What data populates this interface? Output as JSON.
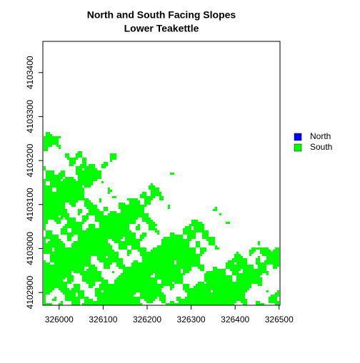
{
  "chart_data": {
    "type": "raster",
    "title": [
      "North and South Facing Slopes",
      "Lower Teakettle"
    ],
    "series": [
      {
        "name": "North",
        "color": "#0000ff"
      },
      {
        "name": "South",
        "color": "#00ff00"
      }
    ],
    "xlim": [
      325963,
      326502
    ],
    "ylim": [
      4102871,
      4103471
    ],
    "xticks": [
      326000,
      326100,
      326200,
      326300,
      326400,
      326500
    ],
    "yticks": [
      4102900,
      4103000,
      4103100,
      4103200,
      4103300,
      4103400
    ]
  }
}
